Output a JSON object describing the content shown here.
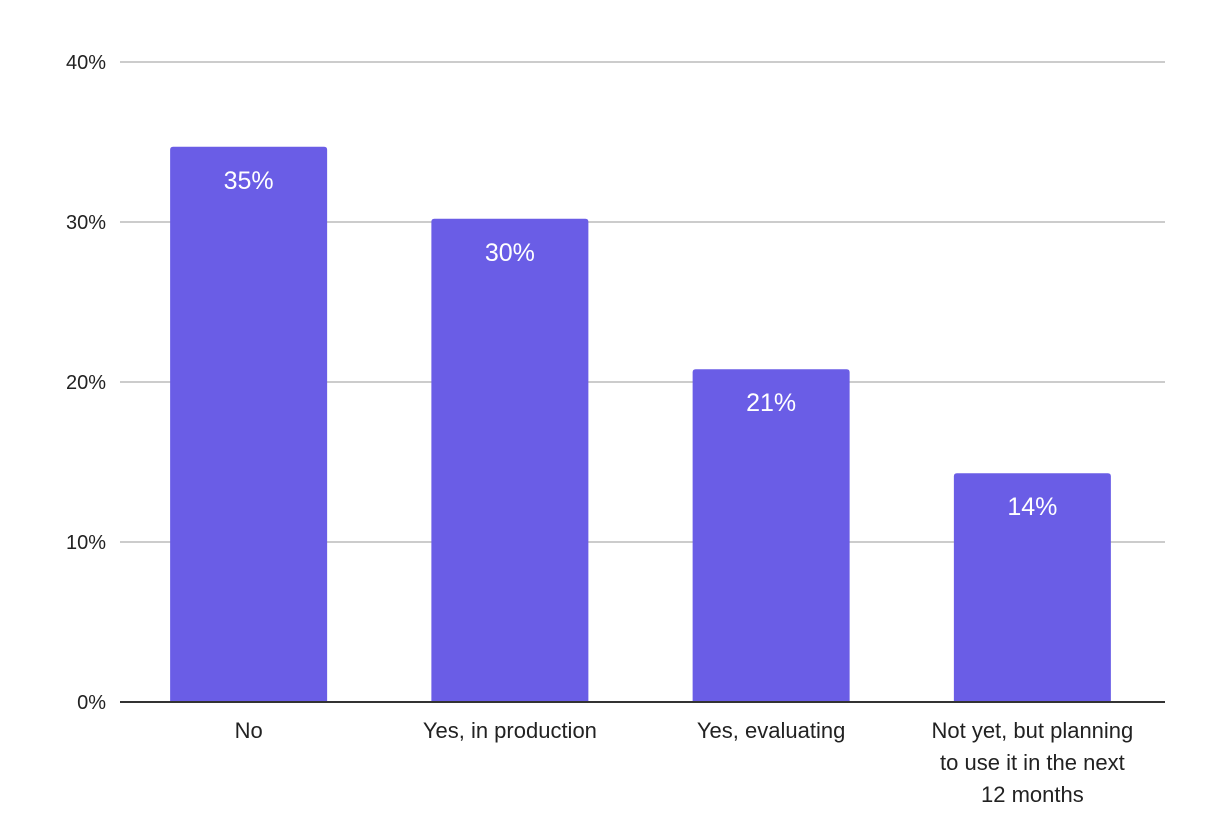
{
  "chart_data": {
    "type": "bar",
    "categories": [
      "No",
      "Yes, in production",
      "Yes, evaluating",
      "Not yet, but planning to use it in the next 12 months"
    ],
    "category_label_lines": [
      [
        "No"
      ],
      [
        "Yes, in production"
      ],
      [
        "Yes, evaluating"
      ],
      [
        "Not yet, but planning",
        "to use it in the next",
        "12 months"
      ]
    ],
    "values": [
      34.7,
      30.2,
      20.8,
      14.3
    ],
    "data_labels": [
      "35%",
      "30%",
      "21%",
      "14%"
    ],
    "y_ticks": [
      "0%",
      "10%",
      "20%",
      "30%",
      "40%"
    ],
    "y_tick_values": [
      0,
      10,
      20,
      30,
      40
    ],
    "ylim": [
      0,
      40
    ],
    "title": "",
    "xlabel": "",
    "ylabel": "",
    "grid": true,
    "legend": "none",
    "bar_color": "#6a5de6"
  }
}
